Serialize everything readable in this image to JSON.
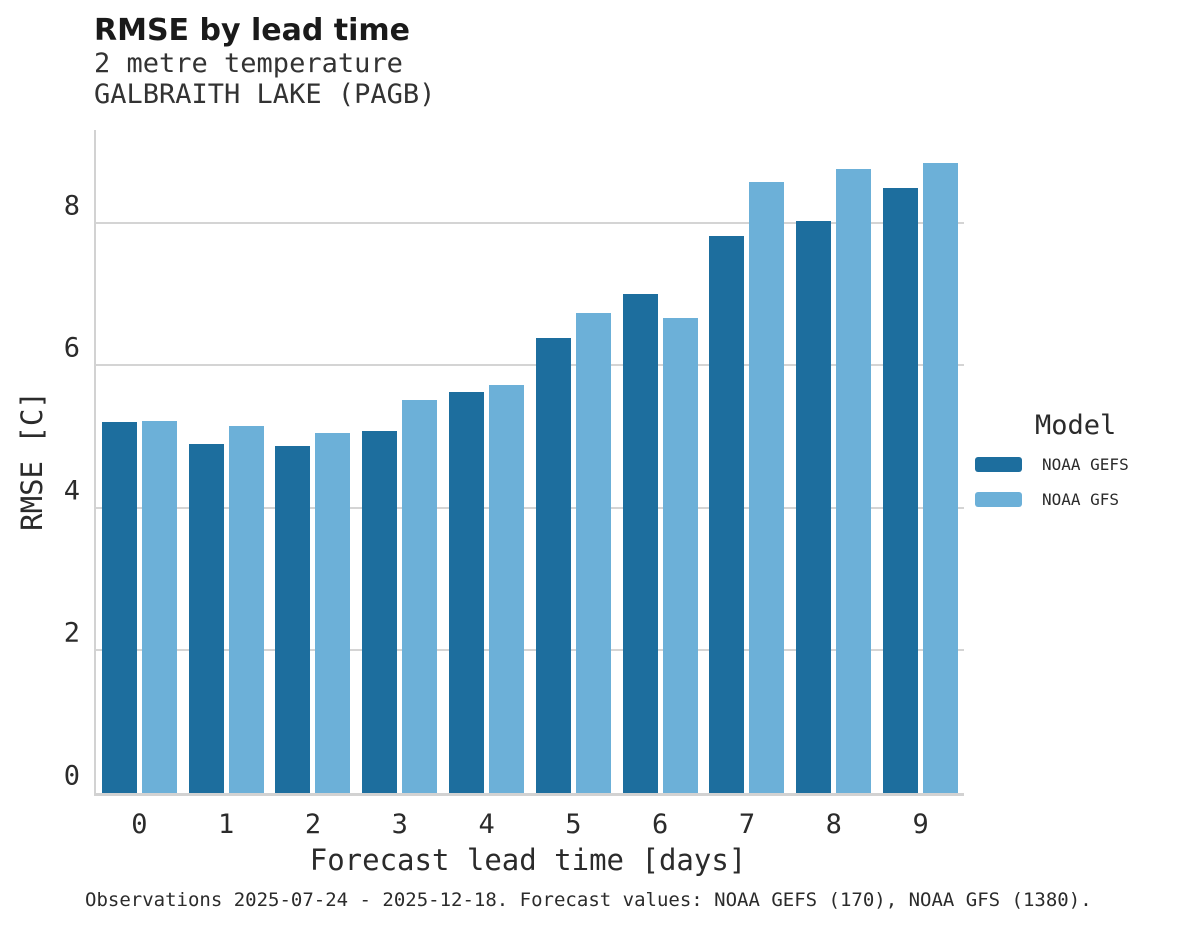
{
  "header": {
    "title": "RMSE by lead time",
    "subtitle_line1": "2 metre temperature",
    "subtitle_line2": "GALBRAITH LAKE (PAGB)"
  },
  "chart_data": {
    "type": "bar",
    "title": "RMSE by lead time",
    "subtitle": [
      "2 metre temperature",
      "GALBRAITH LAKE (PAGB)"
    ],
    "categories": [
      "0",
      "1",
      "2",
      "3",
      "4",
      "5",
      "6",
      "7",
      "8",
      "9"
    ],
    "series": [
      {
        "name": "NOAA GEFS",
        "color": "#1d6e9e",
        "values": [
          5.2,
          4.9,
          4.87,
          5.08,
          5.62,
          6.39,
          7.0,
          7.82,
          8.03,
          8.49
        ]
      },
      {
        "name": "NOAA GFS",
        "color": "#6cb0d8",
        "values": [
          5.22,
          5.15,
          5.05,
          5.52,
          5.72,
          6.74,
          6.66,
          8.57,
          8.76,
          8.84
        ]
      }
    ],
    "xlabel": "Forecast lead time [days]",
    "ylabel": "RMSE [C]",
    "ylim": [
      0,
      9.3
    ],
    "yticks": [
      0,
      2,
      4,
      6,
      8
    ],
    "grid": "horizontal-only",
    "gridline_values": [
      2,
      4,
      6,
      8
    ],
    "legend_title": "Model",
    "legend_position": "right-of-plot"
  },
  "legend": {
    "title": "Model",
    "items": [
      {
        "label": "NOAA GEFS",
        "color": "#1d6e9e"
      },
      {
        "label": "NOAA GFS",
        "color": "#6cb0d8"
      }
    ]
  },
  "footer": {
    "note": "Observations 2025-07-24 - 2025-12-18. Forecast values: NOAA GEFS (170), NOAA GFS (1380)."
  },
  "colors": {
    "gefs_bar": "#1d6e9e",
    "gfs_bar": "#6cb0d8",
    "gridline": "#d4d4d4",
    "spine": "#d2d2d2",
    "title_text": "#1a1a1a",
    "body_text": "#2b2b2b",
    "background": "#ffffff"
  }
}
